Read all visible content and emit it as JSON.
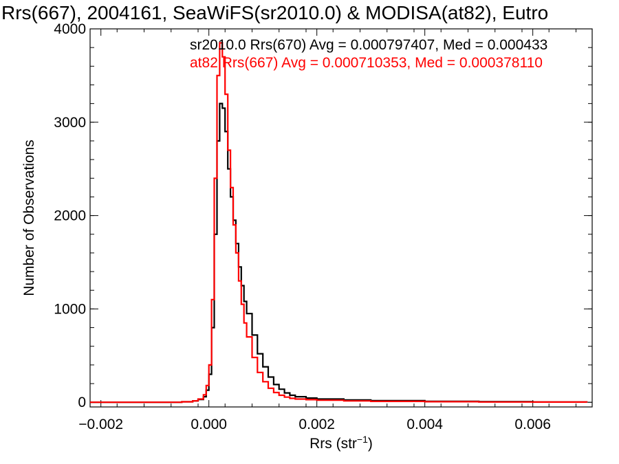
{
  "chart_data": {
    "type": "line",
    "title": "Rrs(667), 2004161, SeaWiFS(sr2010.0) & MODISA(at82), Eutro",
    "xlabel_main": "Rrs (str",
    "xlabel_sup": "−1",
    "xlabel_close": ")",
    "ylabel": "Number of Observations",
    "xlim": [
      -0.0022,
      0.0071
    ],
    "ylim": [
      -50,
      4000
    ],
    "xticks": [
      -0.002,
      0.0,
      0.002,
      0.004,
      0.006
    ],
    "xtick_labels": [
      "−0.002",
      "0.000",
      "0.002",
      "0.004",
      "0.006"
    ],
    "yticks": [
      0,
      1000,
      2000,
      3000,
      4000
    ],
    "ytick_labels": [
      "0",
      "1000",
      "2000",
      "3000",
      "4000"
    ],
    "legend_position": "top-right",
    "series": [
      {
        "name": "sr2010.0 Rrs(670) Avg = 0.000797407, Med = 0.000433",
        "color": "#000000",
        "x": [
          -0.0022,
          -0.0005,
          -0.0003,
          -0.0002,
          -0.0001,
          -5e-05,
          0.0,
          5e-05,
          0.0001,
          0.00015,
          0.0002,
          0.00025,
          0.0003,
          0.00035,
          0.0004,
          0.00045,
          0.0005,
          0.00055,
          0.0006,
          0.00065,
          0.0007,
          0.0008,
          0.0009,
          0.001,
          0.0011,
          0.0012,
          0.0013,
          0.0014,
          0.0015,
          0.0016,
          0.0018,
          0.002,
          0.0025,
          0.003,
          0.004,
          0.005,
          0.006,
          0.007
        ],
        "y": [
          0,
          5,
          15,
          30,
          60,
          130,
          300,
          800,
          1800,
          2800,
          3200,
          3150,
          2900,
          2500,
          2200,
          1950,
          1700,
          1450,
          1250,
          1080,
          950,
          720,
          520,
          380,
          270,
          190,
          140,
          100,
          75,
          60,
          45,
          35,
          25,
          18,
          10,
          6,
          3,
          0
        ]
      },
      {
        "name": "at82 Rrs(667) Avg = 0.000710353, Med = 0.000378110",
        "color": "#ff0000",
        "x": [
          -0.0022,
          -0.0005,
          -0.0003,
          -0.0002,
          -0.0001,
          -5e-05,
          0.0,
          5e-05,
          0.0001,
          0.00015,
          0.0002,
          0.00025,
          0.0003,
          0.00035,
          0.0004,
          0.00045,
          0.0005,
          0.00055,
          0.0006,
          0.00065,
          0.0007,
          0.0008,
          0.0009,
          0.001,
          0.0011,
          0.0012,
          0.0013,
          0.0014,
          0.0015,
          0.0016,
          0.0018,
          0.002,
          0.0025,
          0.003,
          0.004,
          0.005,
          0.006,
          0.007
        ],
        "y": [
          0,
          5,
          15,
          35,
          80,
          180,
          400,
          1100,
          2400,
          3500,
          3850,
          3700,
          3300,
          2700,
          2300,
          1900,
          1600,
          1300,
          1050,
          850,
          700,
          480,
          320,
          220,
          150,
          105,
          75,
          55,
          42,
          35,
          28,
          22,
          15,
          10,
          6,
          3,
          2,
          0
        ]
      }
    ]
  }
}
